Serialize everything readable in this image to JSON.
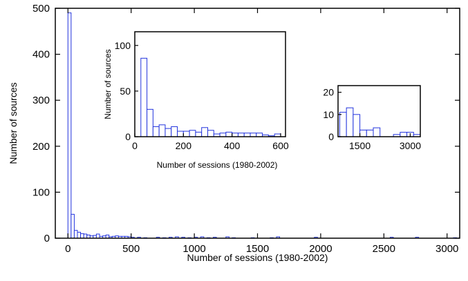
{
  "chart_data": [
    {
      "type": "bar",
      "role": "main",
      "xlabel": "Number of sessions (1980-2002)",
      "ylabel": "Number of sources",
      "xlim": [
        -100,
        3100
      ],
      "ylim": [
        0,
        500
      ],
      "xticks": [
        0,
        500,
        1000,
        1500,
        2000,
        2500,
        3000
      ],
      "yticks": [
        0,
        100,
        200,
        300,
        400,
        500
      ],
      "bin_width": 25,
      "bins": [
        {
          "x": 0,
          "y": 490
        },
        {
          "x": 25,
          "y": 52
        },
        {
          "x": 50,
          "y": 17
        },
        {
          "x": 75,
          "y": 13
        },
        {
          "x": 100,
          "y": 10
        },
        {
          "x": 125,
          "y": 9
        },
        {
          "x": 150,
          "y": 7
        },
        {
          "x": 175,
          "y": 5
        },
        {
          "x": 200,
          "y": 6
        },
        {
          "x": 225,
          "y": 9
        },
        {
          "x": 250,
          "y": 4
        },
        {
          "x": 275,
          "y": 5
        },
        {
          "x": 300,
          "y": 7
        },
        {
          "x": 325,
          "y": 3
        },
        {
          "x": 350,
          "y": 4
        },
        {
          "x": 375,
          "y": 5
        },
        {
          "x": 400,
          "y": 4
        },
        {
          "x": 425,
          "y": 4
        },
        {
          "x": 450,
          "y": 4
        },
        {
          "x": 475,
          "y": 3
        },
        {
          "x": 500,
          "y": 2
        },
        {
          "x": 550,
          "y": 2
        },
        {
          "x": 600,
          "y": 1
        },
        {
          "x": 700,
          "y": 2
        },
        {
          "x": 750,
          "y": 1
        },
        {
          "x": 800,
          "y": 2
        },
        {
          "x": 850,
          "y": 3
        },
        {
          "x": 900,
          "y": 2
        },
        {
          "x": 950,
          "y": 1
        },
        {
          "x": 1000,
          "y": 2
        },
        {
          "x": 1050,
          "y": 3
        },
        {
          "x": 1100,
          "y": 1
        },
        {
          "x": 1150,
          "y": 2
        },
        {
          "x": 1250,
          "y": 3
        },
        {
          "x": 1300,
          "y": 1
        },
        {
          "x": 1450,
          "y": 1
        },
        {
          "x": 1600,
          "y": 1
        },
        {
          "x": 1650,
          "y": 3
        },
        {
          "x": 1950,
          "y": 2
        },
        {
          "x": 2550,
          "y": 2
        },
        {
          "x": 2750,
          "y": 2
        },
        {
          "x": 3050,
          "y": 1
        }
      ]
    },
    {
      "type": "bar",
      "role": "inset",
      "xlabel": "Number of sessions (1980-2002)",
      "ylabel": "Number of sources",
      "xlim": [
        0,
        620
      ],
      "ylim": [
        0,
        115
      ],
      "xticks": [
        0,
        200,
        400,
        600
      ],
      "yticks": [
        0,
        50,
        100
      ],
      "bin_width": 25,
      "bins": [
        {
          "x": 0,
          "y": 0
        },
        {
          "x": 25,
          "y": 86
        },
        {
          "x": 50,
          "y": 30
        },
        {
          "x": 75,
          "y": 11
        },
        {
          "x": 100,
          "y": 13
        },
        {
          "x": 125,
          "y": 9
        },
        {
          "x": 150,
          "y": 11
        },
        {
          "x": 175,
          "y": 6
        },
        {
          "x": 200,
          "y": 6
        },
        {
          "x": 225,
          "y": 7
        },
        {
          "x": 250,
          "y": 5
        },
        {
          "x": 275,
          "y": 10
        },
        {
          "x": 300,
          "y": 7
        },
        {
          "x": 325,
          "y": 3
        },
        {
          "x": 350,
          "y": 4
        },
        {
          "x": 375,
          "y": 5
        },
        {
          "x": 400,
          "y": 4
        },
        {
          "x": 425,
          "y": 4
        },
        {
          "x": 450,
          "y": 4
        },
        {
          "x": 475,
          "y": 4
        },
        {
          "x": 500,
          "y": 4
        },
        {
          "x": 525,
          "y": 2
        },
        {
          "x": 550,
          "y": 1
        },
        {
          "x": 575,
          "y": 3
        }
      ]
    },
    {
      "type": "bar",
      "role": "inset",
      "xlim": [
        850,
        3300
      ],
      "ylim": [
        0,
        23
      ],
      "xticks": [
        1500,
        3000
      ],
      "yticks": [
        0,
        10,
        20
      ],
      "bin_width": 200,
      "bins": [
        {
          "x": 900,
          "y": 11
        },
        {
          "x": 1100,
          "y": 13
        },
        {
          "x": 1300,
          "y": 10
        },
        {
          "x": 1500,
          "y": 3
        },
        {
          "x": 1700,
          "y": 3
        },
        {
          "x": 1900,
          "y": 4
        },
        {
          "x": 2500,
          "y": 1
        },
        {
          "x": 2700,
          "y": 2
        },
        {
          "x": 2900,
          "y": 2
        },
        {
          "x": 3100,
          "y": 1
        }
      ]
    }
  ]
}
